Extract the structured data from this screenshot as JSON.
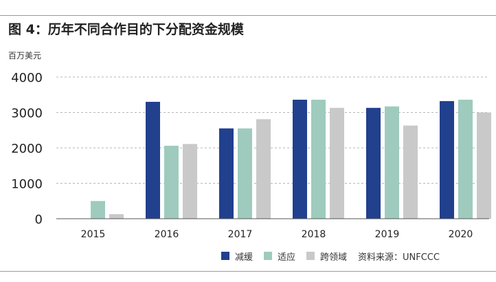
{
  "chart_data": {
    "type": "bar",
    "title": "图 4：历年不同合作目的下分配资金规模",
    "ylabel": "百万美元",
    "categories": [
      "2015",
      "2016",
      "2017",
      "2018",
      "2019",
      "2020"
    ],
    "yticks": [
      "0",
      "1000",
      "2000",
      "3000",
      "4000"
    ],
    "ylim": [
      0,
      4000
    ],
    "grid": "horizontal-dashed",
    "legend_position": "bottom-right",
    "series": [
      {
        "name": "减缓",
        "color": "#21408e",
        "values": [
          0,
          3300,
          2550,
          3360,
          3130,
          3320
        ]
      },
      {
        "name": "适应",
        "color": "#9ecbbd",
        "values": [
          500,
          2060,
          2550,
          3360,
          3170,
          3360
        ]
      },
      {
        "name": "跨领域",
        "color": "#c9c9c9",
        "values": [
          130,
          2110,
          2810,
          3130,
          2630,
          3000
        ]
      }
    ],
    "source": "资料来源：UNFCCC"
  }
}
